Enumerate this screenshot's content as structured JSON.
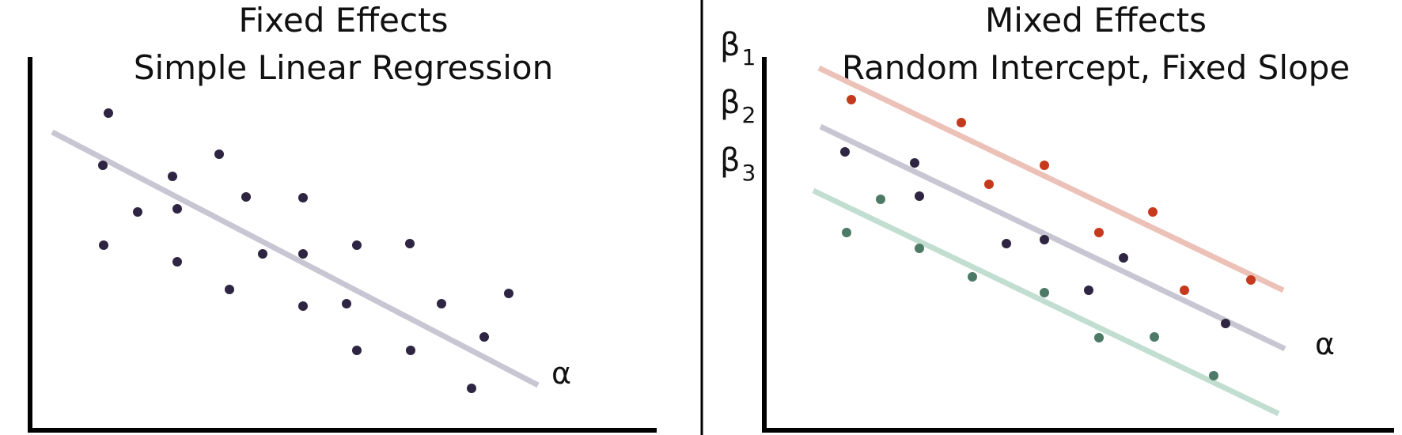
{
  "panels": [
    {
      "title_line1": "Fixed Effects",
      "title_line2": "Simple Linear Regression",
      "line_label": "α"
    },
    {
      "title_line1": "Mixed Effects",
      "title_line2": "Random Intercept, Fixed Slope",
      "line_label": "α",
      "beta_labels": [
        {
          "base": "β",
          "sub": "1"
        },
        {
          "base": "β",
          "sub": "2"
        },
        {
          "base": "β",
          "sub": "3"
        }
      ]
    }
  ],
  "colors": {
    "axis": "#000000",
    "fixed_line": "#c8c6d2",
    "point_dark": "#2d2541",
    "line_red": "#ecc1b7",
    "point_red": "#c53a1c",
    "line_green": "#c1ded1",
    "point_green": "#4c7a66"
  }
}
